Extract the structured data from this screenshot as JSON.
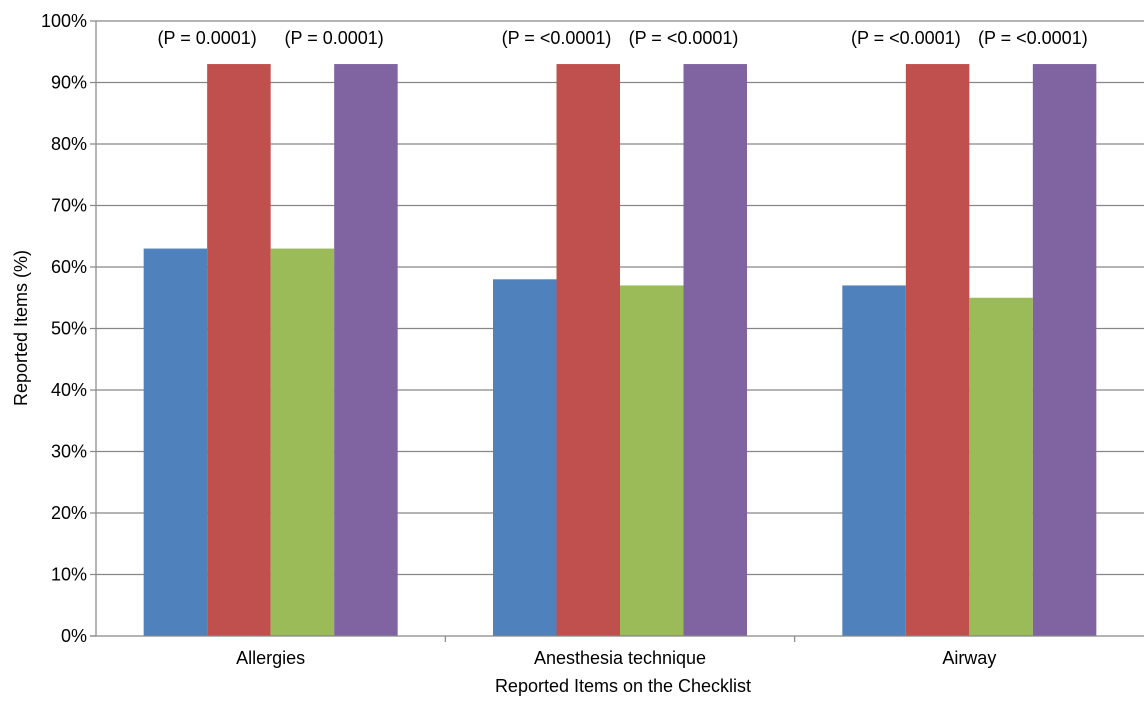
{
  "chart_data": {
    "type": "bar",
    "title": "",
    "xlabel": "Reported Items on the Checklist",
    "ylabel": "Reported Items (%)",
    "ylim": [
      0,
      100
    ],
    "y_ticks": [
      "0%",
      "10%",
      "20%",
      "30%",
      "40%",
      "50%",
      "60%",
      "70%",
      "80%",
      "90%",
      "100%"
    ],
    "grid": true,
    "legend": "none",
    "categories": [
      "Allergies",
      "Anesthesia technique",
      "Airway"
    ],
    "series": [
      {
        "color": "#4F81BD",
        "values": [
          63,
          58,
          57
        ]
      },
      {
        "color": "#C0504D",
        "values": [
          93,
          93,
          93
        ]
      },
      {
        "color": "#9BBB59",
        "values": [
          63,
          57,
          55
        ]
      },
      {
        "color": "#8064A2",
        "values": [
          93,
          93,
          93
        ]
      }
    ],
    "annotations": [
      {
        "category": 0,
        "series": 1,
        "text": "(P = 0.0001)"
      },
      {
        "category": 0,
        "series": 3,
        "text": "(P = 0.0001)"
      },
      {
        "category": 1,
        "series": 1,
        "text": "(P = <0.0001)"
      },
      {
        "category": 1,
        "series": 3,
        "text": "(P = <0.0001)"
      },
      {
        "category": 2,
        "series": 1,
        "text": "(P = <0.0001)"
      },
      {
        "category": 2,
        "series": 3,
        "text": "(P = <0.0001)"
      }
    ]
  }
}
